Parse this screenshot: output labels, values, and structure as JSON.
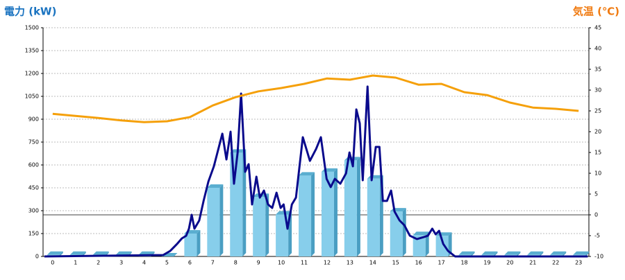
{
  "chart_data": {
    "type": "combo",
    "title": "電力 (kW)",
    "y2_title": "気温 (℃)",
    "categories": [
      "0",
      "1",
      "2",
      "3",
      "4",
      "5",
      "6",
      "7",
      "8",
      "9",
      "10",
      "11",
      "12",
      "13",
      "14",
      "15",
      "16",
      "17",
      "18",
      "19",
      "20",
      "21",
      "22",
      "23"
    ],
    "xlim": [
      -0.42,
      23.45
    ],
    "ylim": [
      0,
      1500
    ],
    "yticks": [
      0,
      150,
      300,
      450,
      600,
      750,
      900,
      1050,
      1200,
      1350,
      1500
    ],
    "y2lim": [
      -10,
      45
    ],
    "y2ticks": [
      -10,
      -5,
      0,
      5,
      10,
      15,
      20,
      25,
      30,
      35,
      40,
      45
    ],
    "grid": true,
    "series": [
      {
        "type": "bar",
        "color": "#87ceeb",
        "values": [
          10,
          10,
          10,
          10,
          10,
          0,
          150,
          450,
          680,
          390,
          275,
          530,
          555,
          630,
          510,
          295,
          140,
          135,
          10,
          10,
          10,
          10,
          10,
          10
        ]
      },
      {
        "type": "line",
        "color": "#0a0a8c",
        "x": [
          -0.36,
          4.83,
          5.14,
          5.44,
          5.65,
          5.84,
          5.96,
          6.08,
          6.2,
          6.41,
          6.6,
          6.81,
          7.05,
          7.42,
          7.6,
          7.78,
          7.93,
          8.09,
          8.24,
          8.42,
          8.57,
          8.72,
          8.91,
          9.06,
          9.24,
          9.42,
          9.6,
          9.79,
          9.97,
          10.1,
          10.27,
          10.46,
          10.64,
          10.94,
          11.25,
          11.52,
          11.73,
          11.98,
          12.16,
          12.34,
          12.58,
          12.83,
          12.98,
          13.13,
          13.28,
          13.43,
          13.56,
          13.77,
          13.95,
          14.13,
          14.29,
          14.44,
          14.62,
          14.8,
          14.95,
          15.17,
          15.38,
          15.62,
          15.93,
          16.23,
          16.41,
          16.6,
          16.75,
          16.9,
          17.08,
          17.29,
          17.6,
          23.4
        ],
        "values": [
          0,
          9,
          36,
          82,
          118,
          136,
          182,
          273,
          182,
          236,
          364,
          491,
          591,
          805,
          636,
          818,
          477,
          682,
          1068,
          555,
          605,
          341,
          523,
          386,
          432,
          341,
          318,
          418,
          318,
          341,
          182,
          341,
          386,
          782,
          627,
          705,
          782,
          509,
          455,
          509,
          477,
          545,
          682,
          591,
          964,
          873,
          500,
          1114,
          500,
          718,
          718,
          364,
          364,
          432,
          295,
          236,
          205,
          136,
          114,
          127,
          136,
          182,
          145,
          168,
          82,
          36,
          0,
          0
        ]
      },
      {
        "type": "line",
        "axis": "y2",
        "color": "#f5a00a",
        "values": [
          24.3,
          23.8,
          23.3,
          22.7,
          22.3,
          22.5,
          23.5,
          26.3,
          28.3,
          29.7,
          30.5,
          31.5,
          32.8,
          32.5,
          33.5,
          33,
          31.3,
          31.5,
          29.5,
          28.8,
          27,
          25.8,
          25.5,
          25
        ]
      }
    ]
  }
}
